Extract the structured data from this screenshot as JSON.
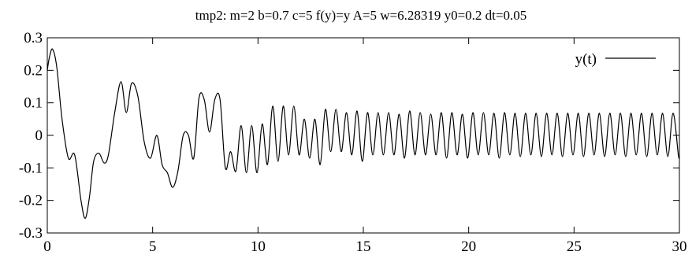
{
  "chart_data": {
    "type": "line",
    "title": "tmp2: m=2 b=0.7 c=5 f(y)=y A=5 w=6.28319 y0=0.2 dt=0.05",
    "xlabel": "",
    "ylabel": "",
    "xlim": [
      0,
      30
    ],
    "ylim": [
      -0.3,
      0.3
    ],
    "xticks": [
      "0",
      "5",
      "10",
      "15",
      "20",
      "25",
      "30"
    ],
    "yticks": [
      "0.3",
      "0.2",
      "0.1",
      "0",
      "-0.1",
      "-0.2",
      "-0.3"
    ],
    "legend_position": "top-right",
    "grid": false,
    "series": [
      {
        "name": "y(t)",
        "color": "#000000",
        "x": [
          0,
          0.1,
          0.25,
          0.45,
          0.7,
          1.0,
          1.3,
          1.6,
          1.8,
          2.0,
          2.2,
          2.45,
          2.7,
          2.9,
          3.2,
          3.5,
          3.75,
          4.0,
          4.3,
          4.6,
          4.9,
          5.2,
          5.45,
          5.7,
          5.95,
          6.2,
          6.45,
          6.7,
          6.95,
          7.2,
          7.45,
          7.7,
          7.95,
          8.2,
          8.45,
          8.7,
          8.95,
          9.2,
          9.45,
          9.7,
          9.95,
          10.2,
          10.45,
          10.7,
          10.95,
          11.2,
          11.45,
          11.7,
          11.95,
          12.2,
          12.45,
          12.7,
          12.95,
          13.2,
          13.45,
          13.7,
          13.95,
          14.2,
          14.45,
          14.7,
          14.95,
          15.2,
          15.45,
          15.7,
          15.95,
          16.2,
          16.45,
          16.7,
          16.95,
          17.2,
          17.45,
          17.7,
          17.95,
          18.2,
          18.45,
          18.7,
          18.95,
          19.2,
          19.45,
          19.7,
          19.95,
          20.2,
          20.45,
          20.7,
          20.95,
          21.2,
          21.45,
          21.7,
          21.95,
          22.2,
          22.45,
          22.7,
          22.95,
          23.2,
          23.45,
          23.7,
          23.95,
          24.2,
          24.45,
          24.7,
          24.95,
          25.2,
          25.45,
          25.7,
          25.95,
          26.2,
          26.45,
          26.7,
          26.95,
          27.2,
          27.45,
          27.7,
          27.95,
          28.2,
          28.45,
          28.7,
          28.95,
          29.2,
          29.45,
          29.7,
          29.95,
          30.0
        ],
        "y": [
          0.2,
          0.24,
          0.265,
          0.21,
          0.05,
          -0.07,
          -0.06,
          -0.2,
          -0.255,
          -0.19,
          -0.08,
          -0.055,
          -0.085,
          -0.06,
          0.07,
          0.165,
          0.07,
          0.16,
          0.12,
          -0.02,
          -0.07,
          0.0,
          -0.09,
          -0.115,
          -0.16,
          -0.11,
          0.0,
          0.0,
          -0.07,
          0.115,
          0.11,
          0.01,
          0.11,
          0.11,
          -0.1,
          -0.05,
          -0.11,
          0.03,
          -0.115,
          0.03,
          -0.115,
          0.035,
          -0.09,
          0.09,
          -0.08,
          0.09,
          -0.06,
          0.09,
          -0.06,
          0.05,
          -0.07,
          0.05,
          -0.09,
          0.08,
          -0.05,
          0.08,
          -0.05,
          0.07,
          -0.06,
          0.075,
          -0.08,
          0.07,
          -0.06,
          0.07,
          -0.06,
          0.07,
          -0.06,
          0.065,
          -0.07,
          0.075,
          -0.06,
          0.07,
          -0.06,
          0.065,
          -0.06,
          0.07,
          -0.07,
          0.07,
          -0.06,
          0.065,
          -0.07,
          0.07,
          -0.06,
          0.07,
          -0.06,
          0.068,
          -0.07,
          0.07,
          -0.06,
          0.068,
          -0.065,
          0.068,
          -0.06,
          0.068,
          -0.065,
          0.068,
          -0.06,
          0.068,
          -0.065,
          0.068,
          -0.06,
          0.068,
          -0.065,
          0.068,
          -0.06,
          0.068,
          -0.065,
          0.068,
          -0.06,
          0.068,
          -0.065,
          0.068,
          -0.06,
          0.068,
          -0.065,
          0.068,
          -0.06,
          0.068,
          -0.065,
          0.068,
          -0.06,
          -0.065
        ]
      }
    ]
  }
}
